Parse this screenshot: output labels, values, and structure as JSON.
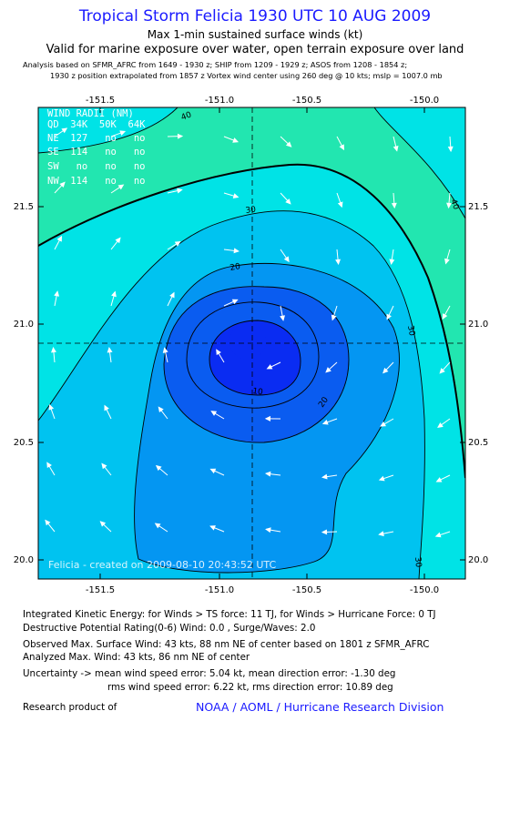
{
  "header": {
    "title": "Tropical Storm Felicia 1930 UTC 10 AUG 2009",
    "subtitle": "Max 1-min sustained surface winds (kt)",
    "validity": "Valid for marine exposure over water, open terrain exposure over land",
    "analysis_line1": "Analysis based on   SFMR_AFRC from 1649 - 1930 z;  SHIP from 1209 - 1929 z;  ASOS from 1208 - 1854 z;",
    "analysis_line2": "1930 z position extrapolated from 1857 z Vortex wind center using 260 deg @ 10 kts; mslp = 1007.0 mb"
  },
  "map": {
    "x_ticks": [
      "-151.5",
      "-151.0",
      "-150.5",
      "-150.0"
    ],
    "y_ticks": [
      "21.5",
      "21.0",
      "20.5",
      "20.0"
    ],
    "contour_labels": [
      "40",
      "30",
      "20",
      "10",
      "20",
      "30",
      "30",
      "40"
    ],
    "wind_radii": {
      "title": "WIND RADII (NM)",
      "header": "QD  34K  50K  64K",
      "rows": [
        "NE  127   no   no",
        "SE  114   no   no",
        "SW   no   no   no",
        "NW  114   no   no"
      ]
    },
    "created": "Felicia - created on 2009-08-10 20:43:52 UTC",
    "colors": {
      "band_gt40": "#22e6b0",
      "band_30_40": "#00e3e6",
      "band_20_30": "#00c3f0",
      "band_10_20": "#0496f2",
      "band_lt10": "#0a5cf0",
      "core": "#0a2cf2"
    }
  },
  "info": {
    "ike": "Integrated Kinetic Energy:  for Winds > TS force: 11 TJ,  for Winds > Hurricane Force: 0 TJ",
    "destructive": "Destructive Potential Rating(0-6)   Wind: 0.0 , Surge/Waves: 2.0",
    "observed": "Observed Max. Surface Wind: 43 kts, 88 nm NE of center based on 1801 z SFMR_AFRC",
    "analyzed": "Analyzed Max. Wind: 43 kts, 86 nm NE of center",
    "uncert1": "Uncertainty -> mean wind speed error: 5.04 kt,   mean direction error:  -1.30 deg",
    "uncert2": "rms wind speed error: 6.22 kt,   rms direction error: 10.89 deg",
    "research": "Research product of",
    "org": "NOAA / AOML / Hurricane Research Division"
  }
}
